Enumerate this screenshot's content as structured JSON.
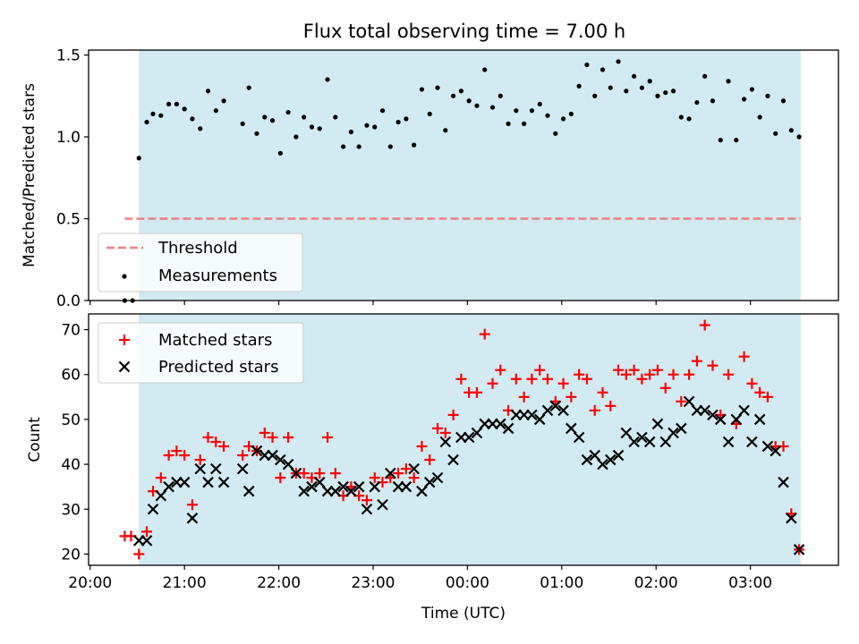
{
  "title": "Flux total observing time = 7.00 h",
  "colors": {
    "observing_window": "#add8e6",
    "threshold": "#f08080",
    "matched": "#ff0000",
    "predicted": "#000000",
    "measurement": "#000000"
  },
  "chart_data": [
    {
      "type": "scatter",
      "title": "Flux total observing time = 7.00 h",
      "xlabel": "",
      "ylabel": "Matched/Predicted stars",
      "xlim": [
        "19:59",
        "03:56"
      ],
      "ylim": [
        0,
        1.53
      ],
      "yticks": [
        "0.0",
        "0.5",
        "1.0",
        "1.5"
      ],
      "shaded_interval": [
        "20:31",
        "03:32"
      ],
      "legend": {
        "placement": "lower-left",
        "entries": [
          "Threshold",
          "Measurements"
        ]
      },
      "threshold": {
        "name": "Threshold",
        "value": 0.5,
        "x_range": [
          "20:22",
          "03:32"
        ],
        "style": "dashed"
      },
      "measurements": {
        "name": "Measurements",
        "points": [
          [
            "20:22",
            0.0
          ],
          [
            "20:27",
            0.0
          ],
          [
            "20:31",
            0.87
          ],
          [
            "20:36",
            1.09
          ],
          [
            "20:40",
            1.14
          ],
          [
            "20:45",
            1.13
          ],
          [
            "20:50",
            1.2
          ],
          [
            "20:55",
            1.2
          ],
          [
            "21:00",
            1.17
          ],
          [
            "21:05",
            1.11
          ],
          [
            "21:10",
            1.05
          ],
          [
            "21:15",
            1.28
          ],
          [
            "21:20",
            1.16
          ],
          [
            "21:25",
            1.22
          ],
          [
            "21:37",
            1.08
          ],
          [
            "21:41",
            1.3
          ],
          [
            "21:46",
            1.02
          ],
          [
            "21:51",
            1.12
          ],
          [
            "21:56",
            1.1
          ],
          [
            "22:01",
            0.9
          ],
          [
            "22:06",
            1.15
          ],
          [
            "22:11",
            1.0
          ],
          [
            "22:16",
            1.12
          ],
          [
            "22:21",
            1.06
          ],
          [
            "22:26",
            1.05
          ],
          [
            "22:31",
            1.35
          ],
          [
            "22:36",
            1.12
          ],
          [
            "22:41",
            0.94
          ],
          [
            "22:46",
            1.03
          ],
          [
            "22:51",
            0.94
          ],
          [
            "22:56",
            1.07
          ],
          [
            "23:01",
            1.06
          ],
          [
            "23:06",
            1.16
          ],
          [
            "23:11",
            0.94
          ],
          [
            "23:16",
            1.09
          ],
          [
            "23:21",
            1.11
          ],
          [
            "23:26",
            0.95
          ],
          [
            "23:31",
            1.29
          ],
          [
            "23:36",
            1.14
          ],
          [
            "23:41",
            1.3
          ],
          [
            "23:46",
            1.04
          ],
          [
            "23:51",
            1.25
          ],
          [
            "23:56",
            1.28
          ],
          [
            "00:01",
            1.22
          ],
          [
            "00:06",
            1.19
          ],
          [
            "00:11",
            1.41
          ],
          [
            "00:16",
            1.18
          ],
          [
            "00:21",
            1.25
          ],
          [
            "00:26",
            1.08
          ],
          [
            "00:31",
            1.16
          ],
          [
            "00:36",
            1.08
          ],
          [
            "00:41",
            1.16
          ],
          [
            "00:46",
            1.2
          ],
          [
            "00:51",
            1.13
          ],
          [
            "00:56",
            1.02
          ],
          [
            "01:01",
            1.11
          ],
          [
            "01:06",
            1.14
          ],
          [
            "01:11",
            1.31
          ],
          [
            "01:16",
            1.44
          ],
          [
            "01:21",
            1.25
          ],
          [
            "01:26",
            1.41
          ],
          [
            "01:31",
            1.3
          ],
          [
            "01:36",
            1.46
          ],
          [
            "01:41",
            1.28
          ],
          [
            "01:46",
            1.37
          ],
          [
            "01:51",
            1.3
          ],
          [
            "01:56",
            1.34
          ],
          [
            "02:01",
            1.25
          ],
          [
            "02:06",
            1.27
          ],
          [
            "02:11",
            1.28
          ],
          [
            "02:16",
            1.12
          ],
          [
            "02:21",
            1.11
          ],
          [
            "02:26",
            1.21
          ],
          [
            "02:31",
            1.37
          ],
          [
            "02:36",
            1.22
          ],
          [
            "02:41",
            0.98
          ],
          [
            "02:46",
            1.34
          ],
          [
            "02:51",
            0.98
          ],
          [
            "02:56",
            1.23
          ],
          [
            "03:01",
            1.29
          ],
          [
            "03:06",
            1.12
          ],
          [
            "03:11",
            1.25
          ],
          [
            "03:16",
            1.02
          ],
          [
            "03:21",
            1.22
          ],
          [
            "03:26",
            1.04
          ],
          [
            "03:31",
            1.0
          ]
        ]
      }
    },
    {
      "type": "scatter",
      "xlabel": "Time (UTC)",
      "ylabel": "Count",
      "xlim": [
        "19:59",
        "03:56"
      ],
      "ylim": [
        17.5,
        73.5
      ],
      "xticks": [
        "20:00",
        "21:00",
        "22:00",
        "23:00",
        "00:00",
        "01:00",
        "02:00",
        "03:00"
      ],
      "yticks": [
        20,
        30,
        40,
        50,
        60,
        70
      ],
      "shaded_interval": [
        "20:31",
        "03:32"
      ],
      "legend": {
        "placement": "upper-left",
        "entries": [
          "Matched stars",
          "Predicted stars"
        ]
      },
      "series": [
        {
          "name": "Matched stars",
          "marker": "plus",
          "points": [
            [
              "20:22",
              24
            ],
            [
              "20:26",
              24
            ],
            [
              "20:31",
              20
            ],
            [
              "20:36",
              25
            ],
            [
              "20:40",
              34
            ],
            [
              "20:45",
              37
            ],
            [
              "20:50",
              42
            ],
            [
              "20:55",
              43
            ],
            [
              "21:00",
              42
            ],
            [
              "21:05",
              31
            ],
            [
              "21:10",
              41
            ],
            [
              "21:15",
              46
            ],
            [
              "21:20",
              45
            ],
            [
              "21:25",
              44
            ],
            [
              "21:37",
              42
            ],
            [
              "21:41",
              44
            ],
            [
              "21:46",
              43
            ],
            [
              "21:51",
              47
            ],
            [
              "21:56",
              46
            ],
            [
              "22:01",
              37
            ],
            [
              "22:06",
              46
            ],
            [
              "22:11",
              38
            ],
            [
              "22:16",
              38
            ],
            [
              "22:21",
              37
            ],
            [
              "22:26",
              38
            ],
            [
              "22:31",
              46
            ],
            [
              "22:36",
              38
            ],
            [
              "22:41",
              33
            ],
            [
              "22:46",
              35
            ],
            [
              "22:51",
              33
            ],
            [
              "22:56",
              32
            ],
            [
              "23:01",
              37
            ],
            [
              "23:06",
              36
            ],
            [
              "23:11",
              37
            ],
            [
              "23:16",
              38
            ],
            [
              "23:21",
              39
            ],
            [
              "23:26",
              37
            ],
            [
              "23:31",
              44
            ],
            [
              "23:36",
              41
            ],
            [
              "23:41",
              48
            ],
            [
              "23:46",
              47
            ],
            [
              "23:51",
              51
            ],
            [
              "23:56",
              59
            ],
            [
              "00:01",
              56
            ],
            [
              "00:06",
              56
            ],
            [
              "00:11",
              69
            ],
            [
              "00:16",
              58
            ],
            [
              "00:21",
              61
            ],
            [
              "00:26",
              52
            ],
            [
              "00:31",
              59
            ],
            [
              "00:36",
              55
            ],
            [
              "00:41",
              59
            ],
            [
              "00:46",
              61
            ],
            [
              "00:51",
              59
            ],
            [
              "00:56",
              54
            ],
            [
              "01:01",
              58
            ],
            [
              "01:06",
              55
            ],
            [
              "01:11",
              60
            ],
            [
              "01:16",
              59
            ],
            [
              "01:21",
              52
            ],
            [
              "01:26",
              56
            ],
            [
              "01:31",
              53
            ],
            [
              "01:36",
              61
            ],
            [
              "01:41",
              60
            ],
            [
              "01:46",
              61
            ],
            [
              "01:51",
              59
            ],
            [
              "01:56",
              60
            ],
            [
              "02:01",
              61
            ],
            [
              "02:06",
              57
            ],
            [
              "02:11",
              60
            ],
            [
              "02:16",
              54
            ],
            [
              "02:21",
              60
            ],
            [
              "02:26",
              63
            ],
            [
              "02:31",
              71
            ],
            [
              "02:36",
              62
            ],
            [
              "02:41",
              51
            ],
            [
              "02:46",
              60
            ],
            [
              "02:51",
              49
            ],
            [
              "02:56",
              64
            ],
            [
              "03:01",
              58
            ],
            [
              "03:06",
              56
            ],
            [
              "03:11",
              55
            ],
            [
              "03:16",
              44
            ],
            [
              "03:21",
              44
            ],
            [
              "03:26",
              29
            ],
            [
              "03:31",
              21
            ]
          ]
        },
        {
          "name": "Predicted stars",
          "marker": "x",
          "points": [
            [
              "20:31",
              23
            ],
            [
              "20:36",
              23
            ],
            [
              "20:40",
              30
            ],
            [
              "20:45",
              33
            ],
            [
              "20:50",
              35
            ],
            [
              "20:55",
              36
            ],
            [
              "21:00",
              36
            ],
            [
              "21:05",
              28
            ],
            [
              "21:10",
              39
            ],
            [
              "21:15",
              36
            ],
            [
              "21:20",
              39
            ],
            [
              "21:25",
              36
            ],
            [
              "21:37",
              39
            ],
            [
              "21:41",
              34
            ],
            [
              "21:46",
              43
            ],
            [
              "21:51",
              42
            ],
            [
              "21:56",
              42
            ],
            [
              "22:01",
              41
            ],
            [
              "22:06",
              40
            ],
            [
              "22:11",
              38
            ],
            [
              "22:16",
              34
            ],
            [
              "22:21",
              35
            ],
            [
              "22:26",
              36
            ],
            [
              "22:31",
              34
            ],
            [
              "22:36",
              34
            ],
            [
              "22:41",
              35
            ],
            [
              "22:46",
              34
            ],
            [
              "22:51",
              35
            ],
            [
              "22:56",
              30
            ],
            [
              "23:01",
              35
            ],
            [
              "23:06",
              31
            ],
            [
              "23:11",
              38
            ],
            [
              "23:16",
              35
            ],
            [
              "23:21",
              35
            ],
            [
              "23:26",
              39
            ],
            [
              "23:31",
              34
            ],
            [
              "23:36",
              36
            ],
            [
              "23:41",
              37
            ],
            [
              "23:46",
              45
            ],
            [
              "23:51",
              41
            ],
            [
              "23:56",
              46
            ],
            [
              "00:01",
              46
            ],
            [
              "00:06",
              47
            ],
            [
              "00:11",
              49
            ],
            [
              "00:16",
              49
            ],
            [
              "00:21",
              49
            ],
            [
              "00:26",
              48
            ],
            [
              "00:31",
              51
            ],
            [
              "00:36",
              51
            ],
            [
              "00:41",
              51
            ],
            [
              "00:46",
              50
            ],
            [
              "00:51",
              52
            ],
            [
              "00:56",
              53
            ],
            [
              "01:01",
              52
            ],
            [
              "01:06",
              48
            ],
            [
              "01:11",
              46
            ],
            [
              "01:16",
              41
            ],
            [
              "01:21",
              42
            ],
            [
              "01:26",
              40
            ],
            [
              "01:31",
              41
            ],
            [
              "01:36",
              42
            ],
            [
              "01:41",
              47
            ],
            [
              "01:46",
              45
            ],
            [
              "01:51",
              46
            ],
            [
              "01:56",
              45
            ],
            [
              "02:01",
              49
            ],
            [
              "02:06",
              45
            ],
            [
              "02:11",
              47
            ],
            [
              "02:16",
              48
            ],
            [
              "02:21",
              54
            ],
            [
              "02:26",
              52
            ],
            [
              "02:31",
              52
            ],
            [
              "02:36",
              51
            ],
            [
              "02:41",
              50
            ],
            [
              "02:46",
              45
            ],
            [
              "02:51",
              50
            ],
            [
              "02:56",
              52
            ],
            [
              "03:01",
              45
            ],
            [
              "03:06",
              50
            ],
            [
              "03:11",
              44
            ],
            [
              "03:16",
              43
            ],
            [
              "03:21",
              36
            ],
            [
              "03:26",
              28
            ],
            [
              "03:31",
              21
            ]
          ]
        }
      ]
    }
  ]
}
